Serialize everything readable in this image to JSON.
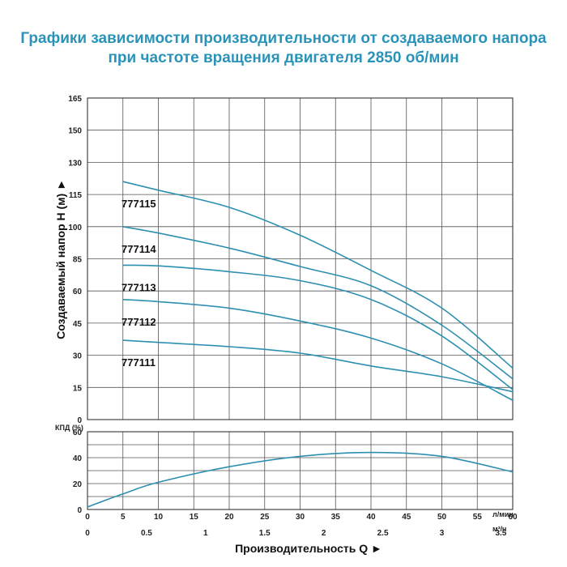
{
  "title": {
    "line1": "Графики зависимости производительности от создаваемого напора",
    "line2": "при частоте вращения двигателя 2850 об/мин"
  },
  "colors": {
    "title": "#2a93b7",
    "curve": "#2e8fb0",
    "grid": "#555555"
  },
  "chart_data": [
    {
      "type": "line",
      "ylabel": "Создаваемый напор Н (м) ►",
      "xlim": [
        0,
        60
      ],
      "ylim": [
        0,
        165
      ],
      "y_ticks": [
        0,
        15,
        30,
        45,
        60,
        85,
        100,
        115,
        130,
        150,
        165
      ],
      "grid": true,
      "series": [
        {
          "name": "777115",
          "x": [
            5,
            10,
            20,
            30,
            40,
            50,
            60
          ],
          "y": [
            121,
            117,
            109,
            96,
            76,
            52,
            24
          ]
        },
        {
          "name": "777114",
          "x": [
            5,
            10,
            20,
            30,
            40,
            50,
            60
          ],
          "y": [
            100,
            97,
            90,
            79,
            64,
            44,
            19
          ]
        },
        {
          "name": "777113",
          "x": [
            5,
            10,
            20,
            30,
            40,
            50,
            60
          ],
          "y": [
            80,
            79.5,
            75,
            68,
            56,
            39,
            14
          ]
        },
        {
          "name": "777112",
          "x": [
            5,
            10,
            20,
            30,
            40,
            50,
            60
          ],
          "y": [
            56,
            55,
            52,
            46,
            38,
            26,
            9
          ]
        },
        {
          "name": "777111",
          "x": [
            5,
            10,
            20,
            30,
            40,
            50,
            60
          ],
          "y": [
            37,
            36,
            34,
            31,
            25,
            20,
            13
          ]
        }
      ]
    },
    {
      "type": "line",
      "ylabel": "КПД (%)",
      "xlabel": "Производительность Q ►",
      "xlim": [
        0,
        60
      ],
      "ylim": [
        0,
        60
      ],
      "y_ticks": [
        0,
        20,
        40,
        60
      ],
      "x_ticks": [
        0,
        5,
        10,
        15,
        20,
        25,
        30,
        35,
        40,
        45,
        50,
        55,
        60
      ],
      "x_unit": "л/мин",
      "x2_ticks": [
        "0",
        "0.5",
        "1",
        "1.5",
        "2",
        "2.5",
        "3",
        "3.5"
      ],
      "x2_unit": "м³/ч",
      "grid": true,
      "series": [
        {
          "x": [
            0,
            5,
            10,
            20,
            30,
            40,
            50,
            60
          ],
          "y": [
            2,
            12,
            21,
            33,
            41,
            44,
            41,
            29
          ]
        }
      ]
    }
  ]
}
